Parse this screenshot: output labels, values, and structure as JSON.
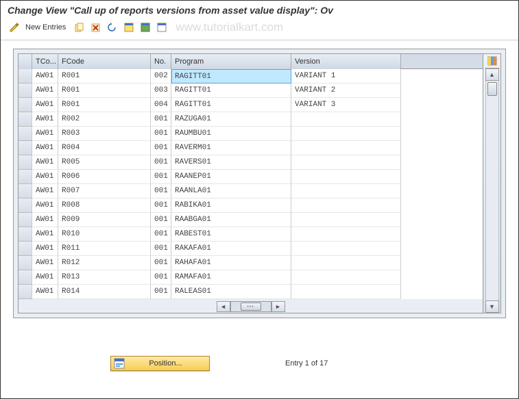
{
  "title": "Change View \"Call up of reports versions from asset value display\": Ov",
  "toolbar": {
    "new_entries_label": "New Entries"
  },
  "watermark": "www.tutorialkart.com",
  "colors": {
    "header_grad_top": "#e8eef5",
    "header_grad_bot": "#cfd8e4",
    "highlight_bg": "#c0e8ff",
    "pos_btn_top": "#feeaa8",
    "pos_btn_bot": "#f7cd54",
    "watermark": "#d8ddd8"
  },
  "table": {
    "columns": {
      "tco": "TCo...",
      "fcode": "FCode",
      "no": "No.",
      "prog": "Program",
      "ver": "Version"
    },
    "rows": [
      {
        "tco": "AW01",
        "fcode": "R001",
        "no": "002",
        "prog": "RAGITT01",
        "ver": "VARIANT 1",
        "hl": true
      },
      {
        "tco": "AW01",
        "fcode": "R001",
        "no": "003",
        "prog": "RAGITT01",
        "ver": "VARIANT 2"
      },
      {
        "tco": "AW01",
        "fcode": "R001",
        "no": "004",
        "prog": "RAGITT01",
        "ver": "VARIANT 3"
      },
      {
        "tco": "AW01",
        "fcode": "R002",
        "no": "001",
        "prog": "RAZUGA01",
        "ver": ""
      },
      {
        "tco": "AW01",
        "fcode": "R003",
        "no": "001",
        "prog": "RAUMBU01",
        "ver": ""
      },
      {
        "tco": "AW01",
        "fcode": "R004",
        "no": "001",
        "prog": "RAVERM01",
        "ver": ""
      },
      {
        "tco": "AW01",
        "fcode": "R005",
        "no": "001",
        "prog": "RAVERS01",
        "ver": ""
      },
      {
        "tco": "AW01",
        "fcode": "R006",
        "no": "001",
        "prog": "RAANEP01",
        "ver": ""
      },
      {
        "tco": "AW01",
        "fcode": "R007",
        "no": "001",
        "prog": "RAANLA01",
        "ver": ""
      },
      {
        "tco": "AW01",
        "fcode": "R008",
        "no": "001",
        "prog": "RABIKA01",
        "ver": ""
      },
      {
        "tco": "AW01",
        "fcode": "R009",
        "no": "001",
        "prog": "RAABGA01",
        "ver": ""
      },
      {
        "tco": "AW01",
        "fcode": "R010",
        "no": "001",
        "prog": "RABEST01",
        "ver": ""
      },
      {
        "tco": "AW01",
        "fcode": "R011",
        "no": "001",
        "prog": "RAKAFA01",
        "ver": ""
      },
      {
        "tco": "AW01",
        "fcode": "R012",
        "no": "001",
        "prog": "RAHAFA01",
        "ver": ""
      },
      {
        "tco": "AW01",
        "fcode": "R013",
        "no": "001",
        "prog": "RAMAFA01",
        "ver": ""
      },
      {
        "tco": "AW01",
        "fcode": "R014",
        "no": "001",
        "prog": "RALEAS01",
        "ver": ""
      }
    ]
  },
  "footer": {
    "position_label": "Position...",
    "entry_text": "Entry 1 of 17"
  }
}
